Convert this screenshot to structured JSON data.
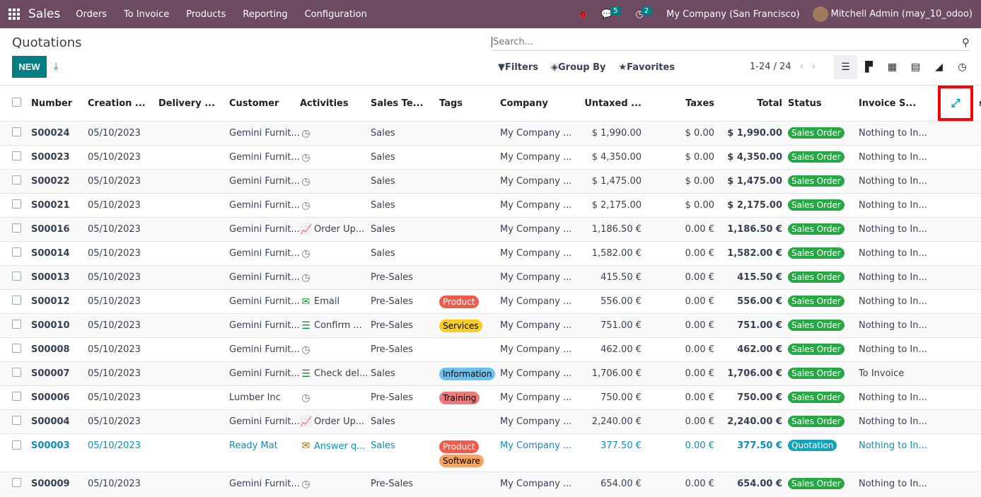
{
  "nav": {
    "brand": "Sales",
    "menu": [
      "Orders",
      "To Invoice",
      "Products",
      "Reporting",
      "Configuration"
    ],
    "messages_count": "5",
    "activities_count": "2",
    "company": "My Company (San Francisco)",
    "user": "Mitchell Admin (may_10_odoo)"
  },
  "page": {
    "title": "Quotations",
    "new_label": "NEW",
    "search_placeholder": "Search...",
    "filters": "Filters",
    "group_by": "Group By",
    "favorites": "Favorites",
    "pager": "1-24 / 24"
  },
  "colors": {
    "nav": "#6b4a62",
    "primary": "#017e84",
    "sales_order": "#28a745",
    "quotation": "#17a2b8",
    "highlight": "#0b8fb5"
  },
  "columns": [
    "Number",
    "Creation ...",
    "Delivery ...",
    "Customer",
    "Activities",
    "Sales Te...",
    "Tags",
    "Company",
    "Untaxed ...",
    "Taxes",
    "Total",
    "Status",
    "Invoice S..."
  ],
  "rows": [
    {
      "number": "S00024",
      "date": "05/10/2023",
      "customer": "Gemini Furnit...",
      "activity_icon": "clock-icon",
      "activity": "",
      "team": "Sales",
      "tags": [],
      "company": "My Company ...",
      "untaxed": "$ 1,990.00",
      "taxes": "$ 0.00",
      "total": "$ 1,990.00",
      "status": "Sales Order",
      "invoice": "Nothing to In..."
    },
    {
      "number": "S00023",
      "date": "05/10/2023",
      "customer": "Gemini Furnit...",
      "activity_icon": "clock-icon",
      "activity": "",
      "team": "Sales",
      "tags": [],
      "company": "My Company ...",
      "untaxed": "$ 4,350.00",
      "taxes": "$ 0.00",
      "total": "$ 4,350.00",
      "status": "Sales Order",
      "invoice": "Nothing to In..."
    },
    {
      "number": "S00022",
      "date": "05/10/2023",
      "customer": "Gemini Furnit...",
      "activity_icon": "clock-icon",
      "activity": "",
      "team": "Sales",
      "tags": [],
      "company": "My Company ...",
      "untaxed": "$ 1,475.00",
      "taxes": "$ 0.00",
      "total": "$ 1,475.00",
      "status": "Sales Order",
      "invoice": "Nothing to In..."
    },
    {
      "number": "S00021",
      "date": "05/10/2023",
      "customer": "Gemini Furnit...",
      "activity_icon": "clock-icon",
      "activity": "",
      "team": "Sales",
      "tags": [],
      "company": "My Company ...",
      "untaxed": "$ 2,175.00",
      "taxes": "$ 0.00",
      "total": "$ 2,175.00",
      "status": "Sales Order",
      "invoice": "Nothing to In..."
    },
    {
      "number": "S00016",
      "date": "05/10/2023",
      "customer": "Gemini Furnit...",
      "activity_icon": "chart-icon-amber",
      "activity": "Order Up...",
      "team": "Sales",
      "tags": [],
      "company": "My Company ...",
      "untaxed": "1,186.50 €",
      "taxes": "0.00 €",
      "total": "1,186.50 €",
      "status": "Sales Order",
      "invoice": "Nothing to In..."
    },
    {
      "number": "S00014",
      "date": "05/10/2023",
      "customer": "Gemini Furnit...",
      "activity_icon": "clock-icon",
      "activity": "",
      "team": "Sales",
      "tags": [],
      "company": "My Company ...",
      "untaxed": "1,582.00 €",
      "taxes": "0.00 €",
      "total": "1,582.00 €",
      "status": "Sales Order",
      "invoice": "Nothing to In..."
    },
    {
      "number": "S00013",
      "date": "05/10/2023",
      "customer": "Gemini Furnit...",
      "activity_icon": "clock-icon",
      "activity": "",
      "team": "Pre-Sales",
      "tags": [],
      "company": "My Company ...",
      "untaxed": "415.50 €",
      "taxes": "0.00 €",
      "total": "415.50 €",
      "status": "Sales Order",
      "invoice": "Nothing to In..."
    },
    {
      "number": "S00012",
      "date": "05/10/2023",
      "customer": "Gemini Furnit...",
      "activity_icon": "email-icon-green",
      "activity": "Email",
      "team": "Pre-Sales",
      "tags": [
        {
          "label": "Product",
          "bg": "#f05c4b",
          "fg": "#fff"
        }
      ],
      "company": "My Company ...",
      "untaxed": "556.00 €",
      "taxes": "0.00 €",
      "total": "556.00 €",
      "status": "Sales Order",
      "invoice": "Nothing to In..."
    },
    {
      "number": "S00010",
      "date": "05/10/2023",
      "customer": "Gemini Furnit...",
      "activity_icon": "todo-icon",
      "activity": "Confirm ...",
      "team": "Pre-Sales",
      "tags": [
        {
          "label": "Services",
          "bg": "#f9cc20",
          "fg": "#000"
        }
      ],
      "company": "My Company ...",
      "untaxed": "751.00 €",
      "taxes": "0.00 €",
      "total": "751.00 €",
      "status": "Sales Order",
      "invoice": "Nothing to In..."
    },
    {
      "number": "S00008",
      "date": "05/10/2023",
      "customer": "Gemini Furnit...",
      "activity_icon": "clock-icon",
      "activity": "",
      "team": "Pre-Sales",
      "tags": [],
      "company": "My Company ...",
      "untaxed": "462.00 €",
      "taxes": "0.00 €",
      "total": "462.00 €",
      "status": "Sales Order",
      "invoice": "Nothing to In..."
    },
    {
      "number": "S00007",
      "date": "05/10/2023",
      "customer": "Gemini Furnit...",
      "activity_icon": "todo-icon",
      "activity": "Check del...",
      "team": "Sales",
      "tags": [
        {
          "label": "Information",
          "bg": "#6cc1ed",
          "fg": "#000"
        }
      ],
      "company": "My Company ...",
      "untaxed": "1,706.00 €",
      "taxes": "0.00 €",
      "total": "1,706.00 €",
      "status": "Sales Order",
      "invoice": "To Invoice"
    },
    {
      "number": "S00006",
      "date": "05/10/2023",
      "customer": "Lumber Inc",
      "activity_icon": "clock-icon",
      "activity": "",
      "team": "Pre-Sales",
      "tags": [
        {
          "label": "Training",
          "bg": "#ed7b7b",
          "fg": "#000"
        }
      ],
      "company": "My Company ...",
      "untaxed": "750.00 €",
      "taxes": "0.00 €",
      "total": "750.00 €",
      "status": "Sales Order",
      "invoice": "Nothing to In..."
    },
    {
      "number": "S00004",
      "date": "05/10/2023",
      "customer": "Gemini Furnit...",
      "activity_icon": "chart-icon-green",
      "activity": "Order Up...",
      "team": "Sales",
      "tags": [],
      "company": "My Company ...",
      "untaxed": "2,240.00 €",
      "taxes": "0.00 €",
      "total": "2,240.00 €",
      "status": "Sales Order",
      "invoice": "Nothing to In..."
    },
    {
      "number": "S00003",
      "date": "05/10/2023",
      "customer": "Ready Mat",
      "activity_icon": "email-icon-amber",
      "activity": "Answer q...",
      "team": "Sales",
      "tags": [
        {
          "label": "Product",
          "bg": "#f05c4b",
          "fg": "#fff"
        },
        {
          "label": "Software",
          "bg": "#f4a460",
          "fg": "#000"
        }
      ],
      "company": "My Company ...",
      "untaxed": "377.50 €",
      "taxes": "0.00 €",
      "total": "377.50 €",
      "status": "Quotation",
      "invoice": "Nothing to In...",
      "highlight": true
    },
    {
      "number": "S00009",
      "date": "05/10/2023",
      "customer": "Gemini Furnit...",
      "activity_icon": "clock-icon",
      "activity": "",
      "team": "Pre-Sales",
      "tags": [],
      "company": "My Company ...",
      "untaxed": "654.00 €",
      "taxes": "0.00 €",
      "total": "654.00 €",
      "status": "Sales Order",
      "invoice": "Nothing to In..."
    }
  ]
}
